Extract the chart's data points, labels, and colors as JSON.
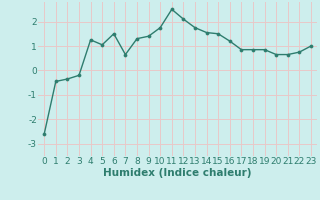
{
  "x": [
    0,
    1,
    2,
    3,
    4,
    5,
    6,
    7,
    8,
    9,
    10,
    11,
    12,
    13,
    14,
    15,
    16,
    17,
    18,
    19,
    20,
    21,
    22,
    23
  ],
  "y": [
    -2.6,
    -0.45,
    -0.35,
    -0.2,
    1.25,
    1.05,
    1.5,
    0.65,
    1.3,
    1.4,
    1.75,
    2.5,
    2.1,
    1.75,
    1.55,
    1.5,
    1.2,
    0.85,
    0.85,
    0.85,
    0.65,
    0.65,
    0.75,
    1.0
  ],
  "line_color": "#2e7d6e",
  "marker": "o",
  "marker_size": 2.2,
  "linewidth": 1.0,
  "xlabel": "Humidex (Indice chaleur)",
  "xlim": [
    -0.5,
    23.5
  ],
  "ylim": [
    -3.5,
    2.8
  ],
  "yticks": [
    -3,
    -2,
    -1,
    0,
    1,
    2
  ],
  "xticks": [
    0,
    1,
    2,
    3,
    4,
    5,
    6,
    7,
    8,
    9,
    10,
    11,
    12,
    13,
    14,
    15,
    16,
    17,
    18,
    19,
    20,
    21,
    22,
    23
  ],
  "background_color": "#cdeeed",
  "grid_color": "#e8c8c8",
  "tick_color": "#2e7d6e",
  "tick_fontsize": 6.5,
  "label_fontsize": 7.5
}
